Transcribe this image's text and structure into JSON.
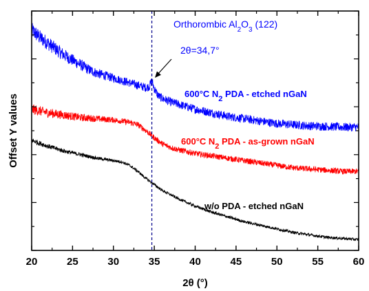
{
  "chart_data": {
    "type": "line",
    "xlabel": "2θ (°)",
    "ylabel": "Offset Y values",
    "xlim": [
      20,
      60
    ],
    "ylim": [
      0,
      10
    ],
    "xticks": [
      "20",
      "25",
      "30",
      "35",
      "40",
      "45",
      "50",
      "55",
      "60"
    ],
    "grid": false,
    "y_tick_labels_shown": false,
    "series": [
      {
        "name": "600°C N2 PDA - etched nGaN",
        "label_main": "600°C N",
        "label_sub": "2",
        "label_rest": " PDA - etched nGaN",
        "color": "#0000ff",
        "noise": 0.18,
        "x": [
          20,
          21,
          22,
          23,
          24,
          25,
          26,
          27,
          28,
          29,
          30,
          31,
          32,
          33,
          34,
          34.4,
          34.7,
          35,
          35.5,
          36,
          37,
          38,
          39,
          40,
          42,
          44,
          46,
          48,
          50,
          52,
          54,
          56,
          58,
          60
        ],
        "y": [
          9.2,
          8.9,
          8.65,
          8.4,
          8.15,
          7.95,
          7.75,
          7.55,
          7.4,
          7.3,
          7.2,
          7.1,
          7.0,
          6.9,
          6.8,
          6.85,
          7.1,
          6.75,
          6.45,
          6.35,
          6.2,
          6.1,
          6.0,
          5.9,
          5.75,
          5.6,
          5.5,
          5.4,
          5.3,
          5.25,
          5.2,
          5.18,
          5.15,
          5.15
        ]
      },
      {
        "name": "600°C N2 PDA - as-grown nGaN",
        "label_main": "600°C N",
        "label_sub": "2",
        "label_rest": " PDA - as-grown nGaN",
        "color": "#ff0000",
        "noise": 0.12,
        "x": [
          20,
          22,
          24,
          26,
          28,
          30,
          32,
          33,
          34,
          35,
          36,
          37,
          38,
          40,
          42,
          44,
          46,
          48,
          50,
          52,
          54,
          56,
          58,
          60
        ],
        "y": [
          5.9,
          5.75,
          5.65,
          5.55,
          5.5,
          5.45,
          5.35,
          5.25,
          5.0,
          4.7,
          4.45,
          4.3,
          4.2,
          4.05,
          3.95,
          3.85,
          3.75,
          3.65,
          3.55,
          3.45,
          3.4,
          3.35,
          3.3,
          3.3
        ]
      },
      {
        "name": "w/o PDA - etched nGaN",
        "label_main": "w/o PDA - etched nGaN",
        "label_sub": "",
        "label_rest": "",
        "color": "#000000",
        "noise": 0.06,
        "x": [
          20,
          22,
          24,
          26,
          28,
          30,
          31,
          32,
          33,
          34,
          35,
          36,
          38,
          40,
          42,
          44,
          46,
          48,
          50,
          52,
          54,
          56,
          58,
          60
        ],
        "y": [
          4.6,
          4.35,
          4.15,
          4.0,
          3.85,
          3.75,
          3.7,
          3.55,
          3.3,
          3.0,
          2.75,
          2.5,
          2.15,
          1.85,
          1.6,
          1.4,
          1.2,
          1.05,
          0.9,
          0.75,
          0.65,
          0.55,
          0.5,
          0.45
        ]
      }
    ],
    "reference_line": {
      "x": 34.7,
      "color": "#00008b",
      "style": "dashed"
    },
    "annotations": {
      "phase_pre": "Orthorombic Al",
      "phase_sub1": "2",
      "phase_mid": "O",
      "phase_sub2": "3",
      "phase_post": " (122)",
      "peak": "2θ=34,7°",
      "color": "#0000ff"
    }
  }
}
